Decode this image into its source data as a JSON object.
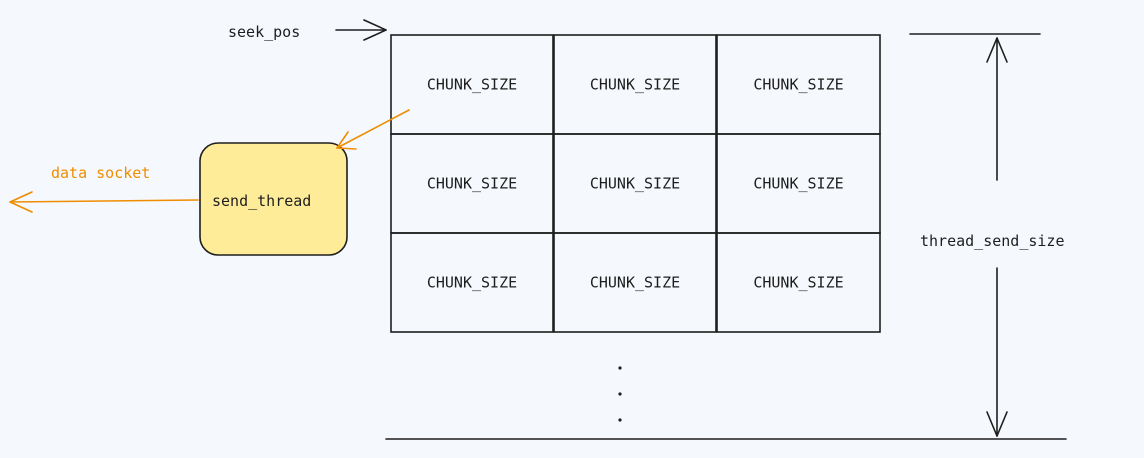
{
  "labels": {
    "seek_pos": "seek_pos",
    "data_socket": "data socket",
    "send_thread": "send_thread",
    "thread_send_size": "thread_send_size",
    "ellipsis": "·\n·\n·"
  },
  "grid": {
    "rows": [
      [
        "CHUNK_SIZE",
        "CHUNK_SIZE",
        "CHUNK_SIZE"
      ],
      [
        "CHUNK_SIZE",
        "CHUNK_SIZE",
        "CHUNK_SIZE"
      ],
      [
        "CHUNK_SIZE",
        "CHUNK_SIZE",
        "CHUNK_SIZE"
      ]
    ]
  },
  "colors": {
    "background": "#f5f9fd",
    "stroke": "#1e1e1e",
    "accent_orange": "#f08c00",
    "thread_box_fill": "#ffec99"
  }
}
